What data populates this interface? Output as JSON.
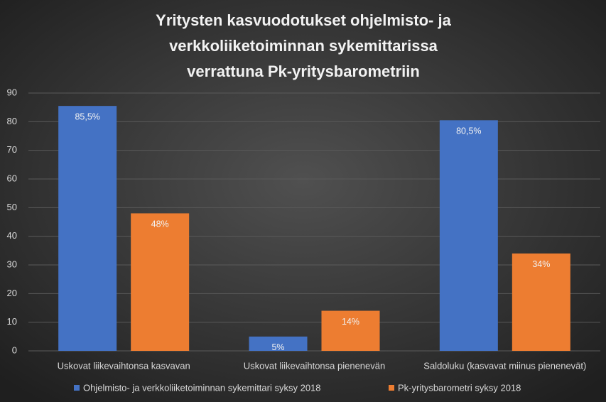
{
  "chart_data": {
    "type": "bar",
    "title": [
      "Yritysten kasvuodotukset ohjelmisto- ja",
      "verkkoliiketoiminnan sykemittarissa",
      "verrattuna Pk-yritysbarometriin"
    ],
    "categories": [
      "Uskovat liikevaihtonsa kasvavan",
      "Uskovat liikevaihtonsa pienenevän",
      "Saldoluku (kasvavat miinus pienenevät)"
    ],
    "series": [
      {
        "name": "Ohjelmisto- ja verkkoliiketoiminnan sykemittari syksy 2018",
        "color": "#4472c4",
        "values": [
          85.5,
          5,
          80.5
        ],
        "value_labels": [
          "85,5%",
          "5%",
          "80,5%"
        ]
      },
      {
        "name": "Pk-yritysbarometri syksy 2018",
        "color": "#ed7d31",
        "values": [
          48,
          14,
          34
        ],
        "value_labels": [
          "48%",
          "14%",
          "34%"
        ]
      }
    ],
    "ylim": [
      0,
      90
    ],
    "yticks": [
      0,
      10,
      20,
      30,
      40,
      50,
      60,
      70,
      80,
      90
    ],
    "grid": true,
    "legend": "bottom"
  }
}
